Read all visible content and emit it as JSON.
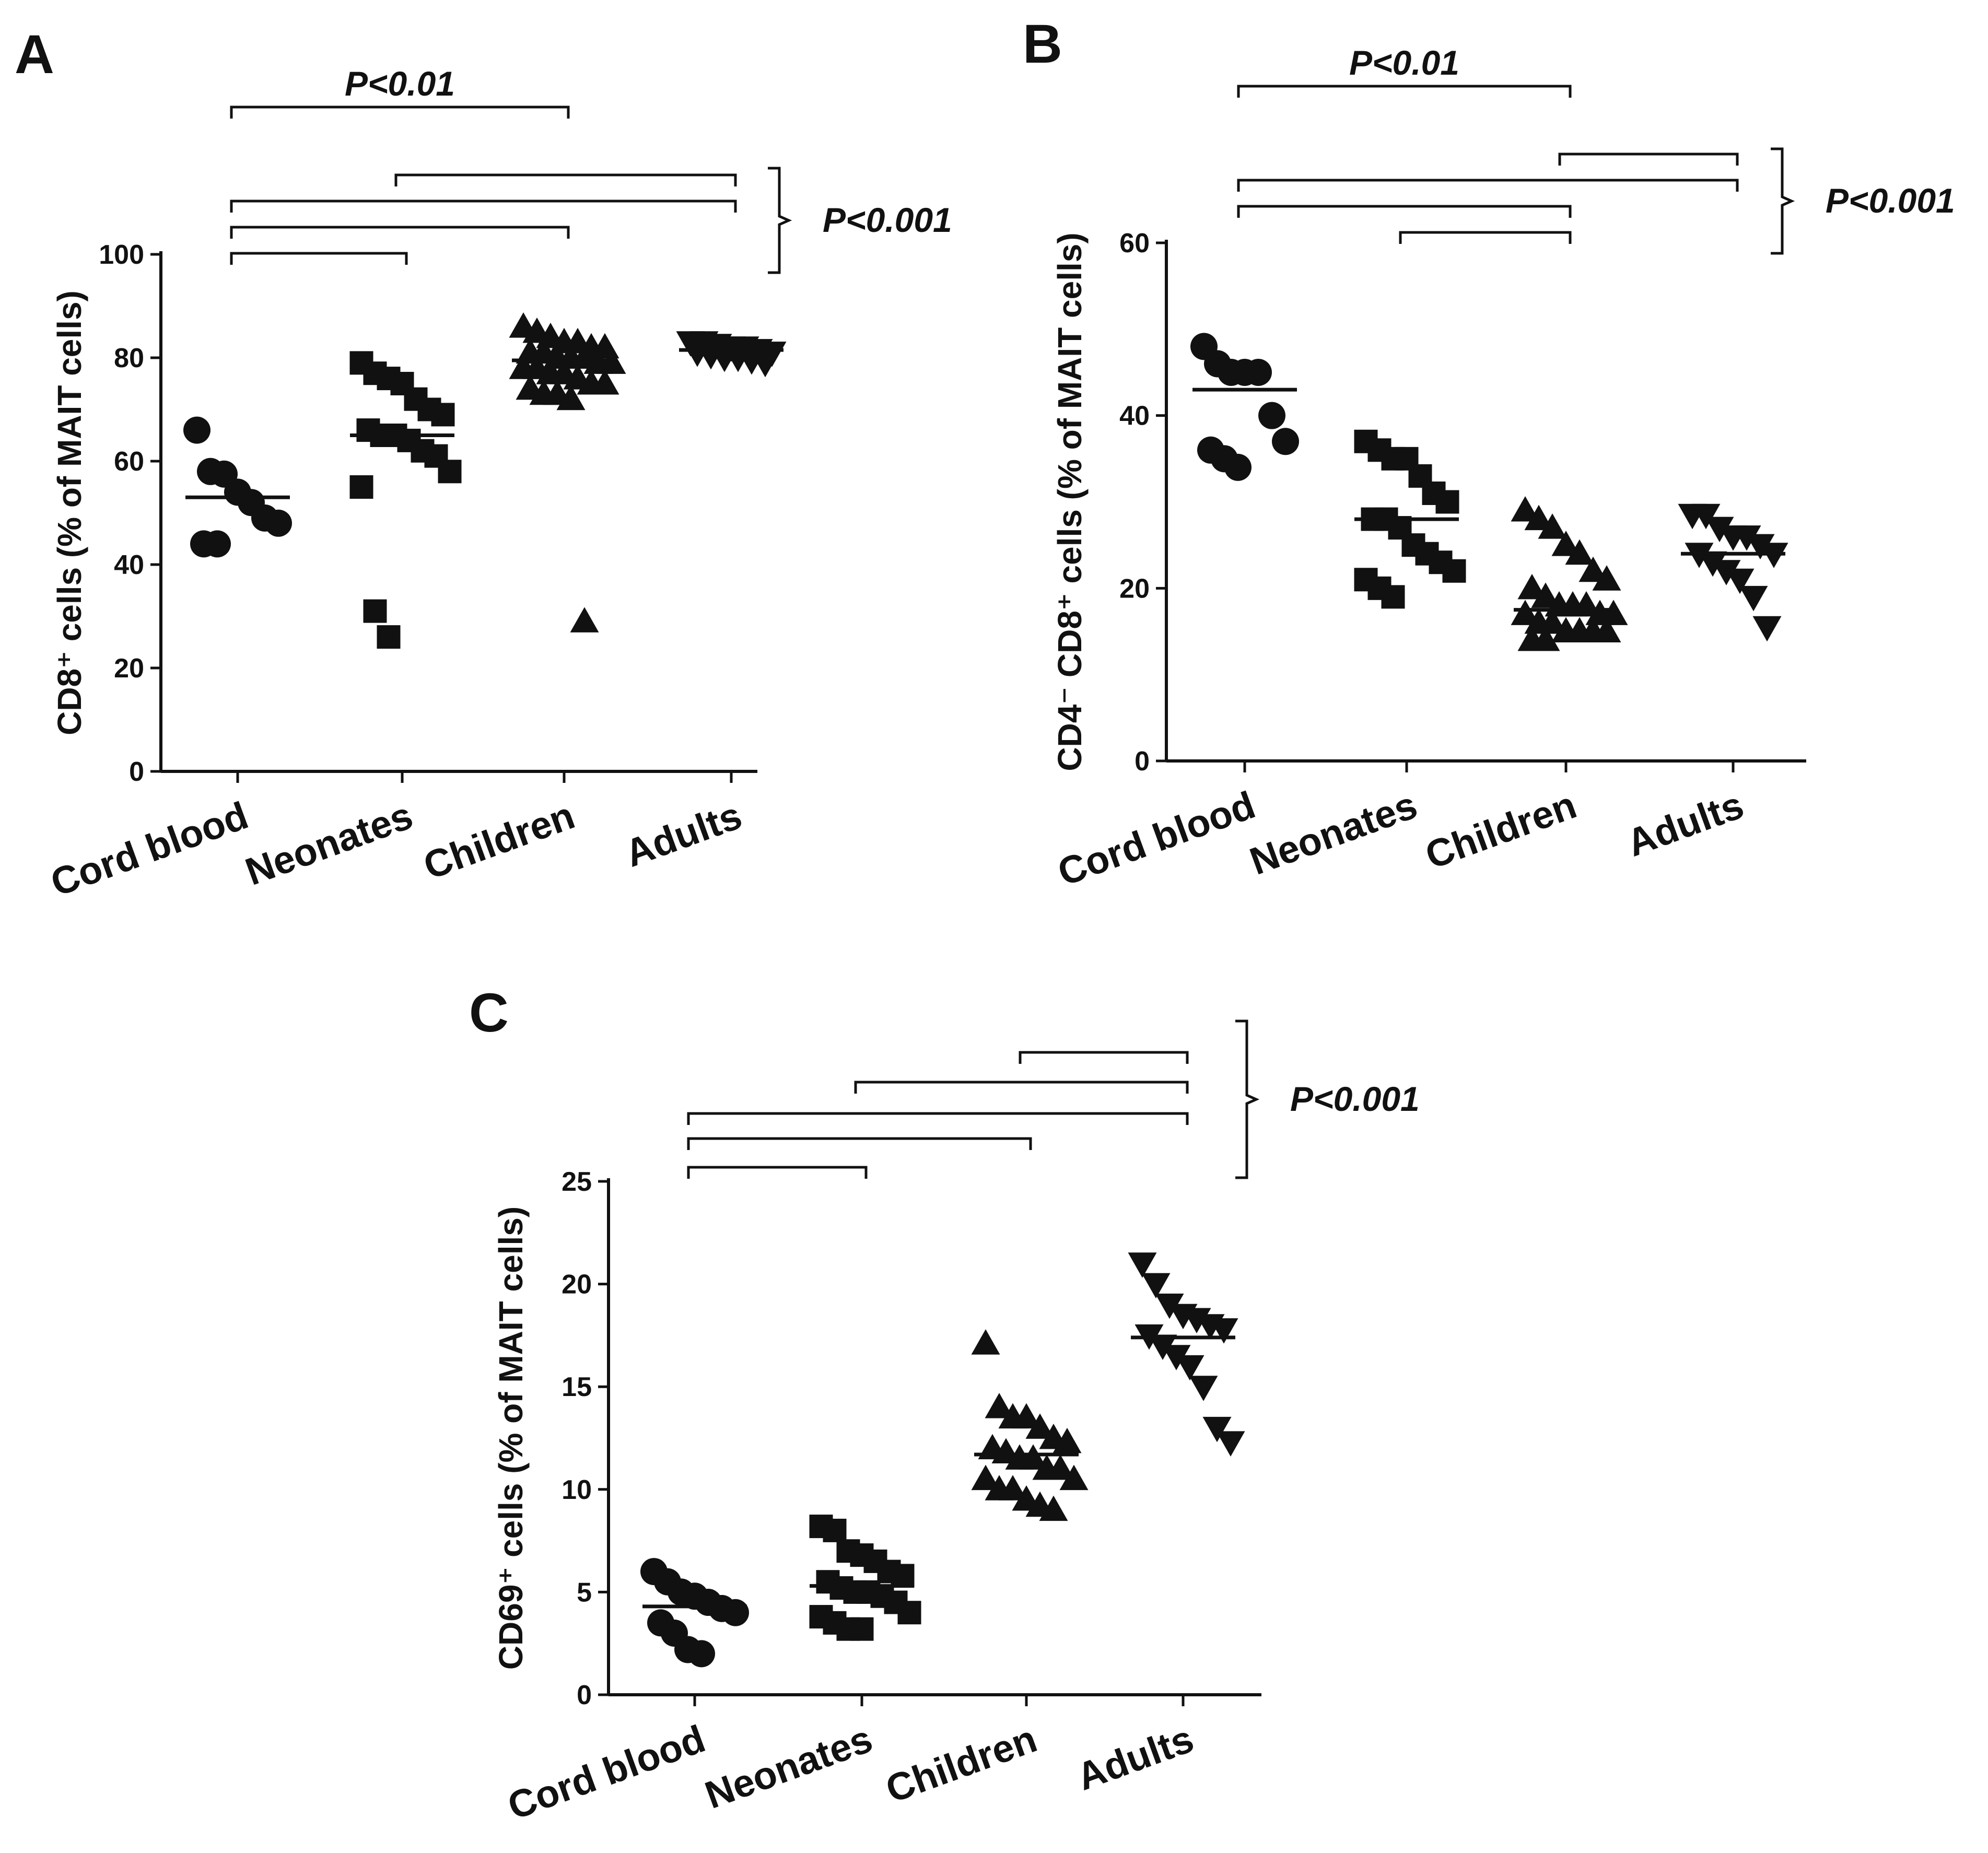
{
  "figure": {
    "description_panels": [
      "A",
      "B",
      "C"
    ]
  },
  "chart_data": [
    {
      "panel": "A",
      "type": "scatter",
      "title": "",
      "xlabel": "",
      "ylabel": "CD8⁺ cells (% of MAIT cells)",
      "categories": [
        "Cord blood",
        "Neonates",
        "Children",
        "Adults"
      ],
      "ylim": [
        0,
        100
      ],
      "yticks": [
        0,
        20,
        40,
        60,
        80,
        100
      ],
      "markers": [
        "circle",
        "square",
        "triangle-up",
        "triangle-down"
      ],
      "series": [
        {
          "name": "Cord blood",
          "values": [
            66,
            58,
            57.5,
            54,
            52,
            49,
            48,
            44,
            44
          ],
          "mean": 53
        },
        {
          "name": "Neonates",
          "values": [
            79,
            77,
            76,
            75,
            72,
            70,
            69,
            66,
            65,
            65,
            64,
            62,
            61,
            58,
            55,
            31,
            26
          ],
          "mean": 65
        },
        {
          "name": "Children",
          "values": [
            86,
            85,
            84,
            83,
            83,
            82,
            82,
            81,
            81,
            80,
            80,
            80,
            79,
            79,
            78,
            78,
            77,
            77,
            76,
            75,
            75,
            74,
            73,
            73,
            72,
            29
          ],
          "mean": 79.5
        },
        {
          "name": "Adults",
          "values": [
            83,
            83,
            82.5,
            82,
            82,
            81.5,
            81,
            81,
            80.5,
            80,
            80,
            79.5,
            79
          ],
          "mean": 81.5
        }
      ],
      "brackets": [
        {
          "from": "Cord blood",
          "to": "Children",
          "label": "P<0.01"
        },
        {
          "from": "Neonates",
          "to": "Adults"
        },
        {
          "from": "Cord blood",
          "to": "Adults"
        },
        {
          "from": "Cord blood",
          "to": "Children"
        },
        {
          "from": "Cord blood",
          "to": "Neonates"
        }
      ],
      "group_label": "P<0.001"
    },
    {
      "panel": "B",
      "type": "scatter",
      "title": "",
      "xlabel": "",
      "ylabel": "CD4⁻ CD8⁺ cells (% of MAIT cells)",
      "categories": [
        "Cord blood",
        "Neonates",
        "Children",
        "Adults"
      ],
      "ylim": [
        0,
        60
      ],
      "yticks": [
        0,
        20,
        40,
        60
      ],
      "markers": [
        "circle",
        "square",
        "triangle-up",
        "triangle-down"
      ],
      "series": [
        {
          "name": "Cord blood",
          "values": [
            48,
            46,
            45,
            45,
            45,
            40,
            37,
            36,
            35,
            34
          ],
          "mean": 43
        },
        {
          "name": "Neonates",
          "values": [
            37,
            36,
            35,
            35,
            33,
            31,
            30,
            28,
            28,
            27,
            25,
            24,
            23,
            22,
            21,
            20,
            19
          ],
          "mean": 28
        },
        {
          "name": "Children",
          "values": [
            29,
            28,
            27,
            25,
            24,
            22,
            21,
            20,
            19,
            18,
            18,
            18,
            17,
            17,
            17,
            16,
            16,
            15,
            15,
            15,
            15,
            14,
            14
          ],
          "mean": 17.5
        },
        {
          "name": "Adults",
          "values": [
            28.5,
            28.5,
            27,
            26,
            26,
            25,
            24,
            24,
            23,
            22,
            21,
            19,
            15.5
          ],
          "mean": 24
        }
      ],
      "brackets": [
        {
          "from": "Cord blood",
          "to": "Children",
          "label": "P<0.01"
        },
        {
          "from": "Children",
          "to": "Adults"
        },
        {
          "from": "Cord blood",
          "to": "Adults"
        },
        {
          "from": "Cord blood",
          "to": "Children"
        },
        {
          "from": "Neonates",
          "to": "Children"
        }
      ],
      "group_label": "P<0.001"
    },
    {
      "panel": "C",
      "type": "scatter",
      "title": "",
      "xlabel": "",
      "ylabel": "CD69⁺ cells (% of MAIT cells)",
      "categories": [
        "Cord blood",
        "Neonates",
        "Children",
        "Adults"
      ],
      "ylim": [
        0,
        25
      ],
      "yticks": [
        0,
        5,
        10,
        15,
        20,
        25
      ],
      "markers": [
        "circle",
        "square",
        "triangle-up",
        "triangle-down"
      ],
      "series": [
        {
          "name": "Cord blood",
          "values": [
            6,
            5.5,
            5,
            4.8,
            4.5,
            4.2,
            4,
            3.5,
            3,
            2.2,
            2
          ],
          "mean": 4.3
        },
        {
          "name": "Neonates",
          "values": [
            8.2,
            8,
            7,
            6.8,
            6.5,
            6,
            5.8,
            5.5,
            5.2,
            5,
            5,
            4.8,
            4.5,
            4,
            3.8,
            3.5,
            3.2,
            3.2
          ],
          "mean": 5.3
        },
        {
          "name": "Children",
          "values": [
            17.1,
            14,
            13.5,
            13.5,
            13,
            12.5,
            12.3,
            12,
            11.8,
            11.5,
            11.5,
            11,
            11,
            10.5,
            10.5,
            10,
            10,
            9.5,
            9.2,
            9
          ],
          "mean": 11.7
        },
        {
          "name": "Adults",
          "values": [
            21,
            20,
            19,
            18.5,
            18.3,
            18,
            17.8,
            17.5,
            17,
            16.5,
            16,
            15,
            13,
            12.3
          ],
          "mean": 17.4
        }
      ],
      "brackets": [
        {
          "from": "Children",
          "to": "Adults"
        },
        {
          "from": "Neonates",
          "to": "Adults"
        },
        {
          "from": "Cord blood",
          "to": "Adults"
        },
        {
          "from": "Cord blood",
          "to": "Children"
        },
        {
          "from": "Cord blood",
          "to": "Neonates"
        }
      ],
      "group_label": "P<0.001"
    }
  ]
}
